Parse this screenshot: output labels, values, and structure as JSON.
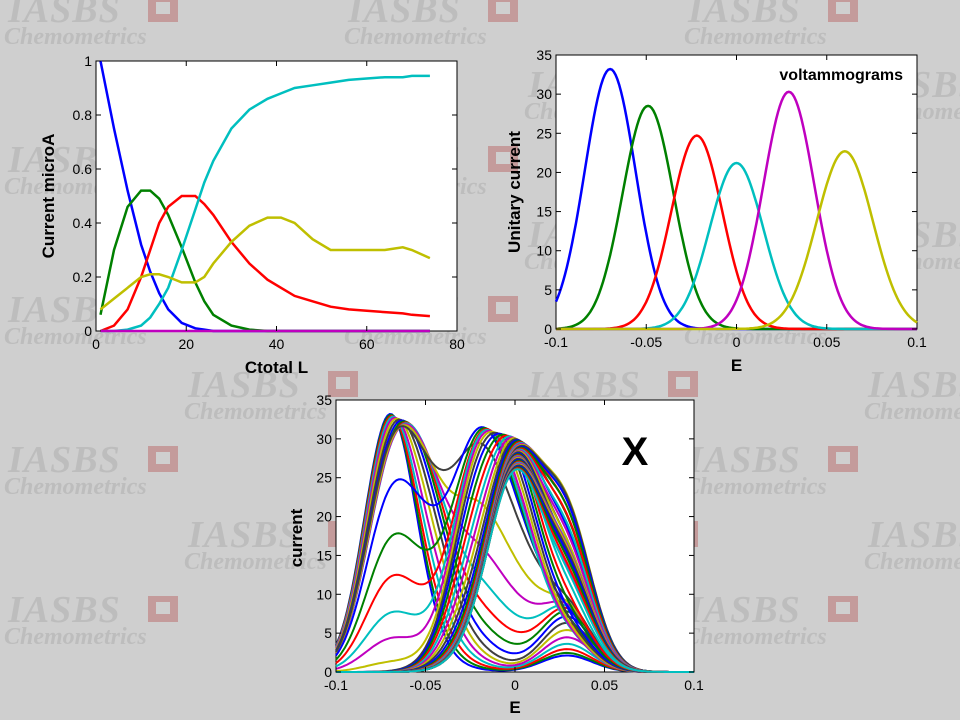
{
  "watermark": {
    "line1": "IASBS",
    "line2": "Chemometrics",
    "color": "#bdbdbd",
    "accent": "#c49b9b"
  },
  "chart_data": [
    {
      "id": "concentration-profiles",
      "type": "line",
      "title": "",
      "xlabel": "Ctotal L",
      "ylabel": "Current microA",
      "xlim": [
        0,
        80
      ],
      "ylim": [
        0,
        1
      ],
      "xticks": [
        0,
        20,
        40,
        60,
        80
      ],
      "yticks": [
        0,
        0.2,
        0.4,
        0.6,
        0.8,
        1
      ],
      "ytick_labels": [
        "0",
        "0.2",
        "0.4",
        "0.6",
        "0.8",
        "1"
      ],
      "grid": false,
      "x": [
        1,
        4,
        7,
        10,
        12,
        14,
        16,
        19,
        22,
        24,
        26,
        30,
        34,
        38,
        41,
        44,
        48,
        52,
        56,
        60,
        64,
        68,
        70,
        74
      ],
      "series": [
        {
          "color": "#0000ff",
          "values": [
            1.0,
            0.75,
            0.52,
            0.32,
            0.22,
            0.14,
            0.08,
            0.03,
            0.01,
            0.005,
            0,
            0,
            0,
            0,
            0,
            0,
            0,
            0,
            0,
            0,
            0,
            0,
            0,
            0
          ]
        },
        {
          "color": "#008000",
          "values": [
            0.06,
            0.3,
            0.46,
            0.52,
            0.52,
            0.49,
            0.43,
            0.31,
            0.18,
            0.11,
            0.06,
            0.02,
            0.005,
            0,
            0,
            0,
            0,
            0,
            0,
            0,
            0,
            0,
            0,
            0
          ]
        },
        {
          "color": "#ff0000",
          "values": [
            0,
            0.02,
            0.08,
            0.2,
            0.3,
            0.4,
            0.46,
            0.5,
            0.5,
            0.47,
            0.43,
            0.33,
            0.25,
            0.19,
            0.16,
            0.13,
            0.11,
            0.09,
            0.08,
            0.075,
            0.07,
            0.065,
            0.06,
            0.055
          ]
        },
        {
          "color": "#00bfbf",
          "values": [
            0,
            0,
            0.005,
            0.02,
            0.05,
            0.1,
            0.16,
            0.3,
            0.45,
            0.55,
            0.63,
            0.75,
            0.82,
            0.86,
            0.88,
            0.9,
            0.91,
            0.92,
            0.93,
            0.935,
            0.94,
            0.94,
            0.945,
            0.945
          ]
        },
        {
          "color": "#bfbf00",
          "values": [
            0.08,
            0.12,
            0.16,
            0.2,
            0.21,
            0.21,
            0.2,
            0.18,
            0.18,
            0.2,
            0.25,
            0.33,
            0.39,
            0.42,
            0.42,
            0.4,
            0.34,
            0.3,
            0.3,
            0.3,
            0.3,
            0.31,
            0.3,
            0.27
          ]
        },
        {
          "color": "#bf00bf",
          "values": [
            0,
            0,
            0,
            0,
            0,
            0,
            0,
            0,
            0,
            0,
            0,
            0,
            0,
            0,
            0,
            0,
            0,
            0,
            0,
            0,
            0,
            0,
            0,
            0
          ]
        }
      ]
    },
    {
      "id": "voltammograms",
      "type": "line",
      "title": "voltammograms",
      "xlabel": "E",
      "ylabel": "Unitary current",
      "xlim": [
        -0.1,
        0.1
      ],
      "ylim": [
        0,
        35
      ],
      "xticks": [
        -0.1,
        -0.05,
        0,
        0.05,
        0.1
      ],
      "xtick_labels": [
        "-0.1",
        "-0.05",
        "0",
        "0.05",
        "0.1"
      ],
      "yticks": [
        0,
        5,
        10,
        15,
        20,
        25,
        30,
        35
      ],
      "grid": false,
      "peaks": [
        {
          "color": "#0000ff",
          "center": -0.07,
          "height": 33.2,
          "width": 0.02
        },
        {
          "color": "#008000",
          "center": -0.049,
          "height": 28.5,
          "width": 0.02
        },
        {
          "color": "#ff0000",
          "center": -0.022,
          "height": 24.7,
          "width": 0.02
        },
        {
          "color": "#00bfbf",
          "center": 0.0,
          "height": 21.2,
          "width": 0.021
        },
        {
          "color": "#bf00bf",
          "center": 0.029,
          "height": 30.3,
          "width": 0.02
        },
        {
          "color": "#bfbf00",
          "center": 0.06,
          "height": 22.7,
          "width": 0.022
        }
      ]
    },
    {
      "id": "data-matrix-x",
      "type": "line",
      "title": "X",
      "xlabel": "E",
      "ylabel": "current",
      "xlim": [
        -0.1,
        0.1
      ],
      "ylim": [
        0,
        35
      ],
      "xticks": [
        -0.1,
        -0.05,
        0,
        0.05,
        0.1
      ],
      "xtick_labels": [
        "-0.1",
        "-0.05",
        "0",
        "0.05",
        "0.1"
      ],
      "yticks": [
        0,
        5,
        10,
        15,
        20,
        25,
        30,
        35
      ],
      "grid": false,
      "curve_count": 60,
      "first_curve_max": 33.2,
      "last_curve_max": 26.1,
      "color_cycle": [
        "#0000ff",
        "#008000",
        "#ff0000",
        "#00bfbf",
        "#bf00bf",
        "#bfbf00",
        "#404040"
      ]
    }
  ]
}
